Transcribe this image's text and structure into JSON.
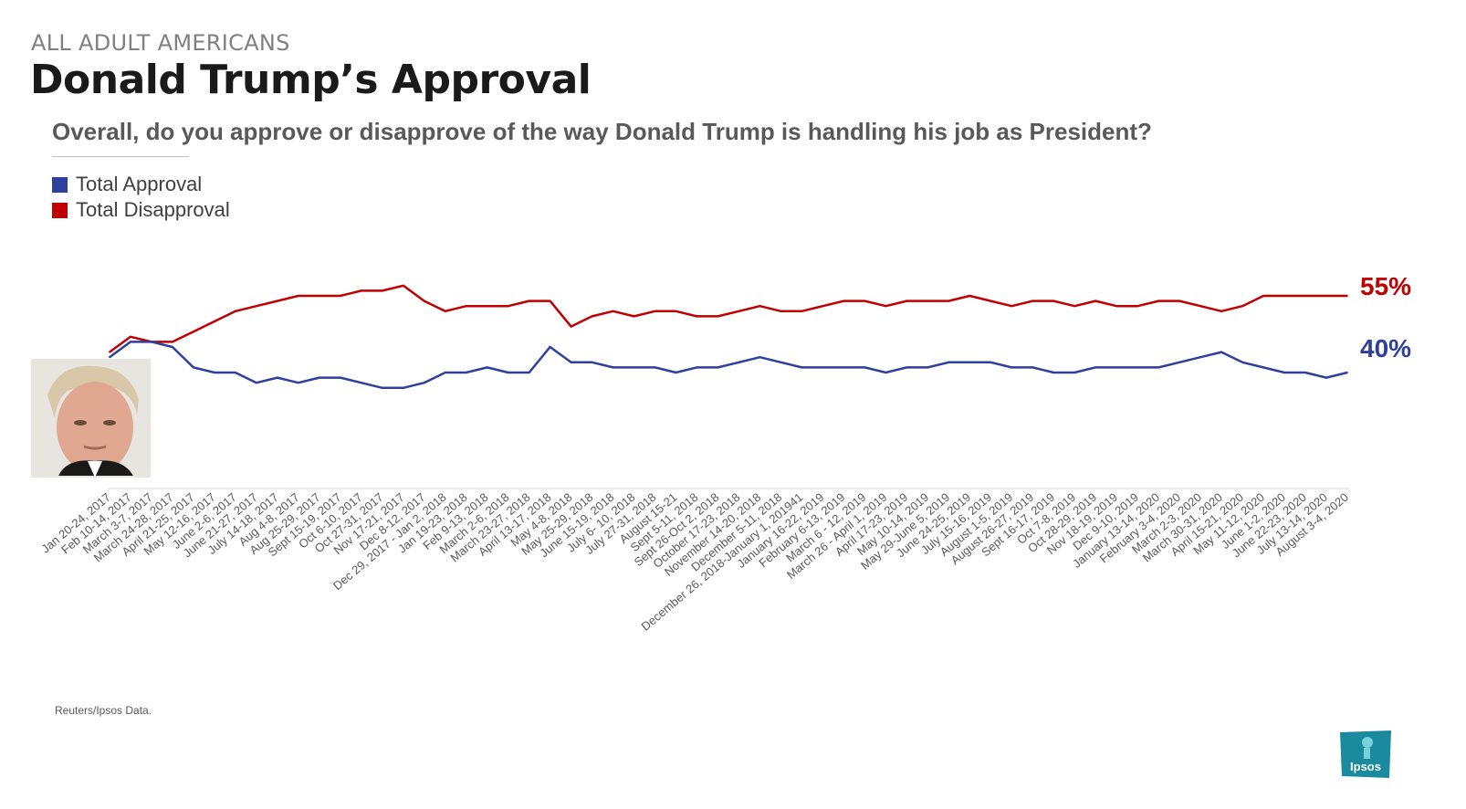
{
  "header": {
    "kicker": "ALL ADULT AMERICANS",
    "title": "Donald Trump’s Approval",
    "question": "Overall, do you approve or disapprove of the way Donald Trump is handling his job as President?"
  },
  "footer": {
    "source": "Reuters/Ipsos Data."
  },
  "logo": {
    "text": "Ipsos",
    "color": "#1a8a9e"
  },
  "photo": {
    "icon": "person-portrait-icon"
  },
  "end_labels": {
    "disapproval": "55%",
    "approval": "40%"
  },
  "colors": {
    "approval": "#2e3f9e",
    "disapproval": "#c00000",
    "axis": "#d9d9d9",
    "tick_text": "#595959"
  },
  "chart_data": {
    "type": "line",
    "title": "",
    "xlabel": "",
    "ylabel": "",
    "ylim": [
      20,
      70
    ],
    "grid": false,
    "legend_position": "top-left",
    "categories": [
      "Jan 20-24, 2017",
      "Feb 10-14, 2017",
      "March 3-7, 2017",
      "March 24-28, 2017",
      "April 21-25, 2017",
      "May 12-16, 2017",
      "June 2-6, 2017",
      "June 21-27, 2017",
      "July 14-18, 2017",
      "Aug 4-8, 2017",
      "Aug 25-29, 2017",
      "Sept 15-19, 2017",
      "Oct 6-10, 2017",
      "Oct 27-31, 2017",
      "Nov 17-21, 2017",
      "Dec 8-12, 2017",
      "Dec 29, 2017 - Jan 2, 2018",
      "Jan 19-23, 2018",
      "Feb 9-13, 2018",
      "March 2-6, 2018",
      "March 23-27, 2018",
      "April 13-17, 2018",
      "May 4-8, 2018",
      "May 25-29, 2018",
      "June 15-19, 2018",
      "July 6- 10, 2018",
      "July 27-31, 2018",
      "August 15-21",
      "Sept 5-11, 2018",
      "Sept 26-Oct 2, 2018",
      "October 17-23, 2018",
      "November 14-20, 2018",
      "December 5-11, 2018",
      "December 26, 2018-January 1, 201941",
      "January 16-22, 2019",
      "February 6-13, 2019",
      "March 6 - 12, 2019",
      "March 26 - April 1, 2019",
      "April 17-23, 2019",
      "May 10-14, 2019",
      "May 29-June 5, 2019",
      "June 24-25, 2019",
      "July 15-16, 2019",
      "August 1-5, 2019",
      "August 26-27, 2019",
      "Sept 16-17, 2019",
      "Oct 7-8, 2019",
      "Oct 28-29, 2019",
      "Nov 18-19, 2019",
      "Dec 9-10, 2019",
      "January 13-14, 2020",
      "February 3-4, 2020",
      "March 2-3, 2020",
      "March 30-31, 2020",
      "April 15-21, 2020",
      "May 11-12, 2020",
      "June 1-2, 2020",
      "June 22-23, 2020",
      "July 13-14, 2020",
      "August 3-4, 2020"
    ],
    "series": [
      {
        "name": "Total Disapproval",
        "color": "#c00000",
        "values": [
          44,
          47,
          46,
          46,
          48,
          50,
          52,
          53,
          54,
          55,
          55,
          55,
          56,
          56,
          57,
          54,
          52,
          53,
          53,
          53,
          54,
          54,
          49,
          51,
          52,
          51,
          52,
          52,
          51,
          51,
          52,
          53,
          52,
          52,
          53,
          54,
          54,
          53,
          54,
          54,
          54,
          55,
          54,
          53,
          54,
          54,
          53,
          54,
          53,
          53,
          54,
          54,
          53,
          52,
          53,
          55,
          55,
          55,
          55,
          55
        ]
      },
      {
        "name": "Total Approval",
        "color": "#2e3f9e",
        "values": [
          43,
          46,
          46,
          45,
          41,
          40,
          40,
          38,
          39,
          38,
          39,
          39,
          38,
          37,
          37,
          38,
          40,
          40,
          41,
          40,
          40,
          45,
          42,
          42,
          41,
          41,
          41,
          40,
          41,
          41,
          42,
          43,
          42,
          41,
          41,
          41,
          41,
          40,
          41,
          41,
          42,
          42,
          42,
          41,
          41,
          40,
          40,
          41,
          41,
          41,
          41,
          42,
          43,
          44,
          42,
          41,
          40,
          40,
          39,
          40
        ]
      }
    ]
  }
}
